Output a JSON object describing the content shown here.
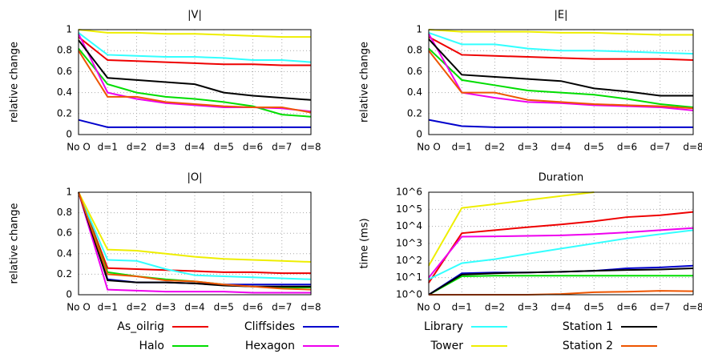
{
  "chart_data": [
    {
      "type": "line",
      "title": "|V|",
      "ylabel": "relative change",
      "categories": [
        "No O",
        "d=1",
        "d=2",
        "d=3",
        "d=4",
        "d=5",
        "d=6",
        "d=7",
        "d=8"
      ],
      "ylim": [
        0,
        1
      ],
      "yticks": [
        0,
        0.2,
        0.4,
        0.6,
        0.8,
        1
      ],
      "grid": true,
      "log": false,
      "series": [
        {
          "name": "As_oilrig",
          "color": "#ee0000",
          "values": [
            0.93,
            0.71,
            0.7,
            0.69,
            0.68,
            0.67,
            0.67,
            0.66,
            0.66
          ]
        },
        {
          "name": "Halo",
          "color": "#00dd00",
          "values": [
            0.82,
            0.48,
            0.4,
            0.36,
            0.34,
            0.31,
            0.27,
            0.19,
            0.17
          ]
        },
        {
          "name": "Cliffsides",
          "color": "#0000cc",
          "values": [
            0.14,
            0.07,
            0.07,
            0.07,
            0.07,
            0.07,
            0.07,
            0.07,
            0.07
          ]
        },
        {
          "name": "Hexagon",
          "color": "#ee00ee",
          "values": [
            0.96,
            0.4,
            0.34,
            0.3,
            0.28,
            0.26,
            0.26,
            0.25,
            0.22
          ]
        },
        {
          "name": "Library",
          "color": "#33ffff",
          "values": [
            0.97,
            0.76,
            0.75,
            0.74,
            0.74,
            0.73,
            0.71,
            0.71,
            0.69
          ]
        },
        {
          "name": "Tower",
          "color": "#eeee00",
          "values": [
            1.0,
            0.97,
            0.97,
            0.96,
            0.96,
            0.95,
            0.94,
            0.93,
            0.93
          ]
        },
        {
          "name": "Station 1",
          "color": "#000000",
          "values": [
            0.9,
            0.54,
            0.52,
            0.5,
            0.48,
            0.4,
            0.37,
            0.35,
            0.33
          ]
        },
        {
          "name": "Station 2",
          "color": "#ee5500",
          "values": [
            0.8,
            0.36,
            0.36,
            0.31,
            0.29,
            0.27,
            0.26,
            0.26,
            0.21
          ]
        }
      ]
    },
    {
      "type": "line",
      "title": "|E|",
      "ylabel": "relative change",
      "categories": [
        "No O",
        "d=1",
        "d=2",
        "d=3",
        "d=4",
        "d=5",
        "d=6",
        "d=7",
        "d=8"
      ],
      "ylim": [
        0,
        1
      ],
      "yticks": [
        0,
        0.2,
        0.4,
        0.6,
        0.8,
        1
      ],
      "grid": true,
      "log": false,
      "series": [
        {
          "name": "As_oilrig",
          "color": "#ee0000",
          "values": [
            0.93,
            0.76,
            0.75,
            0.74,
            0.73,
            0.72,
            0.72,
            0.72,
            0.71
          ]
        },
        {
          "name": "Halo",
          "color": "#00dd00",
          "values": [
            0.82,
            0.52,
            0.47,
            0.42,
            0.4,
            0.38,
            0.34,
            0.29,
            0.26
          ]
        },
        {
          "name": "Cliffsides",
          "color": "#0000cc",
          "values": [
            0.14,
            0.08,
            0.07,
            0.07,
            0.07,
            0.07,
            0.07,
            0.07,
            0.07
          ]
        },
        {
          "name": "Hexagon",
          "color": "#ee00ee",
          "values": [
            0.96,
            0.4,
            0.35,
            0.31,
            0.3,
            0.28,
            0.27,
            0.26,
            0.23
          ]
        },
        {
          "name": "Library",
          "color": "#33ffff",
          "values": [
            0.97,
            0.86,
            0.86,
            0.82,
            0.8,
            0.8,
            0.79,
            0.78,
            0.77
          ]
        },
        {
          "name": "Tower",
          "color": "#eeee00",
          "values": [
            1.0,
            0.98,
            0.98,
            0.98,
            0.97,
            0.97,
            0.96,
            0.95,
            0.95
          ]
        },
        {
          "name": "Station 1",
          "color": "#000000",
          "values": [
            0.91,
            0.57,
            0.55,
            0.53,
            0.51,
            0.44,
            0.41,
            0.37,
            0.37
          ]
        },
        {
          "name": "Station 2",
          "color": "#ee5500",
          "values": [
            0.8,
            0.4,
            0.4,
            0.33,
            0.31,
            0.29,
            0.28,
            0.27,
            0.25
          ]
        }
      ]
    },
    {
      "type": "line",
      "title": "|O|",
      "ylabel": "relative change",
      "categories": [
        "No O",
        "d=1",
        "d=2",
        "d=3",
        "d=4",
        "d=5",
        "d=6",
        "d=7",
        "d=8"
      ],
      "ylim": [
        0,
        1
      ],
      "yticks": [
        0,
        0.2,
        0.4,
        0.6,
        0.8,
        1
      ],
      "grid": true,
      "log": false,
      "series": [
        {
          "name": "As_oilrig",
          "color": "#ee0000",
          "values": [
            1.0,
            0.26,
            0.25,
            0.24,
            0.23,
            0.22,
            0.22,
            0.21,
            0.21
          ]
        },
        {
          "name": "Halo",
          "color": "#00dd00",
          "values": [
            1.0,
            0.22,
            0.18,
            0.15,
            0.13,
            0.1,
            0.08,
            0.07,
            0.07
          ]
        },
        {
          "name": "Cliffsides",
          "color": "#0000cc",
          "values": [
            1.0,
            0.15,
            0.12,
            0.12,
            0.11,
            0.1,
            0.1,
            0.1,
            0.1
          ]
        },
        {
          "name": "Hexagon",
          "color": "#ee00ee",
          "values": [
            1.0,
            0.05,
            0.04,
            0.03,
            0.03,
            0.03,
            0.02,
            0.02,
            0.02
          ]
        },
        {
          "name": "Library",
          "color": "#33ffff",
          "values": [
            1.0,
            0.34,
            0.33,
            0.25,
            0.19,
            0.18,
            0.17,
            0.16,
            0.15
          ]
        },
        {
          "name": "Tower",
          "color": "#eeee00",
          "values": [
            1.0,
            0.44,
            0.43,
            0.4,
            0.37,
            0.35,
            0.34,
            0.33,
            0.32
          ]
        },
        {
          "name": "Station 1",
          "color": "#000000",
          "values": [
            1.0,
            0.14,
            0.12,
            0.12,
            0.11,
            0.09,
            0.08,
            0.08,
            0.08
          ]
        },
        {
          "name": "Station 2",
          "color": "#ee5500",
          "values": [
            1.0,
            0.2,
            0.18,
            0.14,
            0.13,
            0.1,
            0.08,
            0.06,
            0.05
          ]
        }
      ]
    },
    {
      "type": "line",
      "title": "Duration",
      "ylabel": "time (ms)",
      "categories": [
        "No O",
        "d=1",
        "d=2",
        "d=3",
        "d=4",
        "d=5",
        "d=6",
        "d=7",
        "d=8"
      ],
      "ylim": [
        1,
        1000000
      ],
      "yticks": [
        {
          "value": 1,
          "label": "10^0"
        },
        {
          "value": 10,
          "label": "10^1"
        },
        {
          "value": 100,
          "label": "10^2"
        },
        {
          "value": 1000,
          "label": "10^3"
        },
        {
          "value": 10000,
          "label": "10^4"
        },
        {
          "value": 100000,
          "label": "10^5"
        },
        {
          "value": 1000000,
          "label": "10^6"
        }
      ],
      "grid": true,
      "log": true,
      "series": [
        {
          "name": "As_oilrig",
          "color": "#ee0000",
          "values": [
            5,
            4000,
            6000,
            9000,
            13000,
            20000,
            35000,
            45000,
            70000
          ]
        },
        {
          "name": "Halo",
          "color": "#00dd00",
          "values": [
            1,
            12,
            13,
            13,
            13,
            13,
            13,
            13,
            13
          ]
        },
        {
          "name": "Cliffsides",
          "color": "#0000cc",
          "values": [
            1,
            18,
            20,
            20,
            22,
            25,
            35,
            40,
            50
          ]
        },
        {
          "name": "Hexagon",
          "color": "#ee00ee",
          "values": [
            10,
            2500,
            2600,
            2800,
            3000,
            3500,
            4500,
            6000,
            8000
          ]
        },
        {
          "name": "Library",
          "color": "#33ffff",
          "values": [
            8,
            70,
            120,
            250,
            500,
            1000,
            2000,
            3500,
            6000
          ]
        },
        {
          "name": "Tower",
          "color": "#eeee00",
          "values": [
            50,
            120000,
            200000,
            350000,
            600000,
            1000000,
            null,
            null,
            null
          ]
        },
        {
          "name": "Station 1",
          "color": "#000000",
          "values": [
            1,
            15,
            18,
            20,
            22,
            25,
            28,
            30,
            35
          ]
        },
        {
          "name": "Station 2",
          "color": "#ee5500",
          "values": [
            1,
            1,
            1,
            1,
            1.1,
            1.4,
            1.5,
            1.7,
            1.6
          ]
        }
      ]
    }
  ]
}
